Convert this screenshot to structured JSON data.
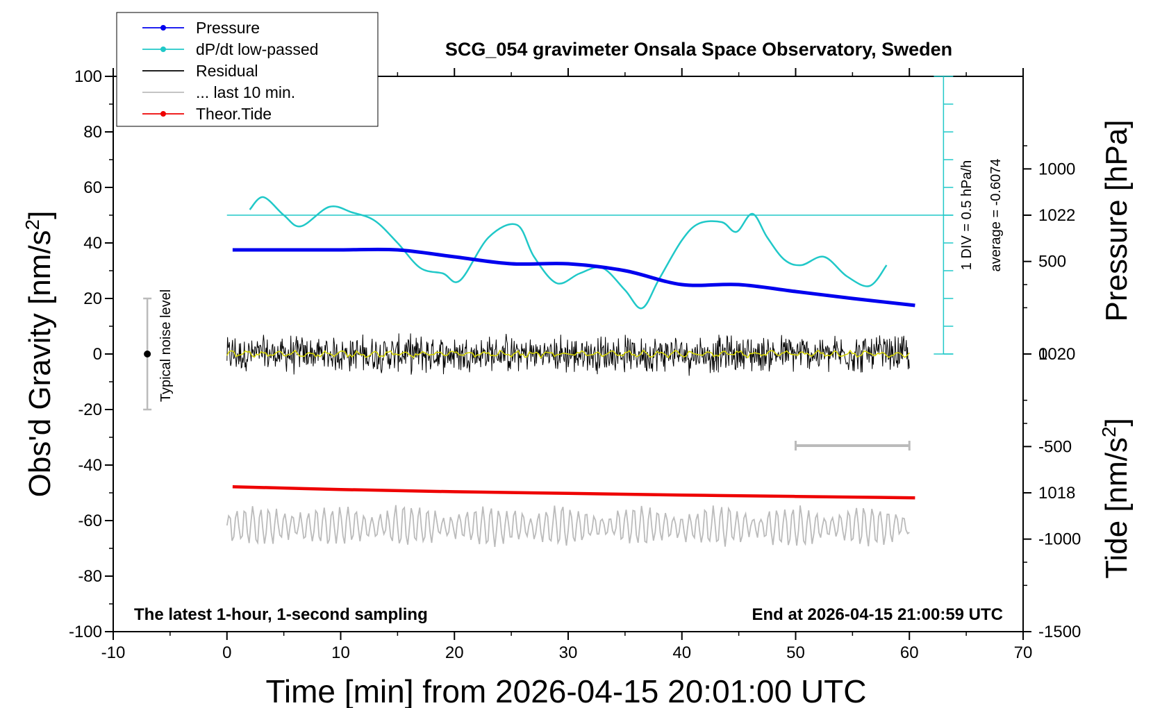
{
  "chart_data": {
    "type": "line",
    "title": "SCG_054 gravimeter Onsala Space Observatory, Sweden",
    "xlabel": "Time [min] from 2026-04-15 20:01:00 UTC",
    "ylabel_main": "Obs'd Gravity [nm/s",
    "ylabel_main_sup": "2",
    "ylabel_main_end": "]",
    "ylabel_pressure": "Pressure [hPa]",
    "ylabel_tide": "Tide [nm/s",
    "ylabel_tide_sup": "2",
    "ylabel_tide_end": "]",
    "xlim": [
      -10,
      70
    ],
    "ylim": [
      -100,
      100
    ],
    "x_ticks": [
      "-10",
      "0",
      "10",
      "20",
      "30",
      "40",
      "50",
      "60",
      "70"
    ],
    "y_ticks": [
      "-100",
      "-80",
      "-60",
      "-40",
      "-20",
      "0",
      "20",
      "40",
      "60",
      "80",
      "100"
    ],
    "pressure_axis": {
      "ticks": [
        "1018",
        "1020",
        "1022"
      ],
      "ylim": [
        1016,
        1024
      ]
    },
    "tide_axis": {
      "ticks": [
        "-1500",
        "-1000",
        "-500",
        "0",
        "500",
        "1000"
      ],
      "ylim": [
        -1500,
        1500
      ]
    },
    "legend": {
      "placement": "top-left",
      "entries": [
        {
          "label": "Pressure",
          "color": "#0000ee",
          "marker": true
        },
        {
          "label": "dP/dt low-passed",
          "color": "#20c8c8",
          "marker": true
        },
        {
          "label": "Residual",
          "color": "#000000",
          "marker": false
        },
        {
          "label": "... last 10 min.",
          "color": "#bbbbbb",
          "marker": false
        },
        {
          "label": "Theor.Tide",
          "color": "#ee0000",
          "marker": true
        }
      ]
    },
    "annotations": {
      "bottom_left": "The latest 1-hour, 1-second sampling",
      "bottom_right": "End at 2026-04-15 21:00:59 UTC",
      "noise_label": "Typical noise level",
      "dpdt_scale": "1 DIV = 0.5 hPa/h",
      "dpdt_average": "average = -0.6074"
    },
    "noise_bar": {
      "x": -7,
      "y": 0,
      "low": -20,
      "high": 20
    },
    "last10_bar": {
      "x_start": 50,
      "x_end": 60,
      "y": -33
    },
    "dpdt_reference_level": 50,
    "series": [
      {
        "name": "Pressure",
        "unit": "hPa",
        "color": "#0000ee",
        "x": [
          0.5,
          5,
          10,
          15,
          20,
          25,
          30,
          35,
          40,
          45,
          50,
          55,
          60.5
        ],
        "values": [
          1021.5,
          1021.5,
          1021.5,
          1021.5,
          1021.4,
          1021.3,
          1021.3,
          1021.2,
          1021.0,
          1021.0,
          1020.9,
          1020.8,
          1020.7
        ]
      },
      {
        "name": "dP/dt low-passed",
        "unit": "nm/s2 (display)",
        "color": "#20c8c8",
        "x": [
          2,
          3.2,
          5,
          6.5,
          9,
          11,
          13,
          15,
          17,
          19,
          20.5,
          23,
          25.5,
          27,
          29,
          31,
          33,
          35,
          36.5,
          38,
          40,
          41.5,
          43.5,
          44.8,
          46.2,
          47.5,
          49,
          50.5,
          52.5,
          54.5,
          56.5,
          58
        ],
        "values": [
          52,
          56.5,
          50,
          46,
          53,
          51,
          48,
          40,
          31,
          29,
          26.5,
          42,
          46.5,
          35,
          25.5,
          29,
          31,
          23,
          16.5,
          27,
          41,
          47,
          47.5,
          44,
          50.5,
          42,
          34,
          32,
          35,
          28,
          24.5,
          32
        ]
      },
      {
        "name": "Residual",
        "unit": "nm/s2",
        "color": "#000000",
        "x_range": [
          0,
          60
        ],
        "center": 0,
        "amplitude": 8
      },
      {
        "name": "... last 10 min.",
        "unit": "nm/s2",
        "color": "#bbbbbb",
        "x_range": [
          0,
          60
        ],
        "center": -62,
        "amplitude": 7
      },
      {
        "name": "Theor.Tide",
        "unit": "nm/s2",
        "color": "#ee0000",
        "x": [
          0.5,
          10,
          20,
          30,
          40,
          50,
          60.5
        ],
        "values": [
          -47.8,
          -48.8,
          -49.6,
          -50.2,
          -50.8,
          -51.3,
          -51.8
        ]
      }
    ]
  }
}
